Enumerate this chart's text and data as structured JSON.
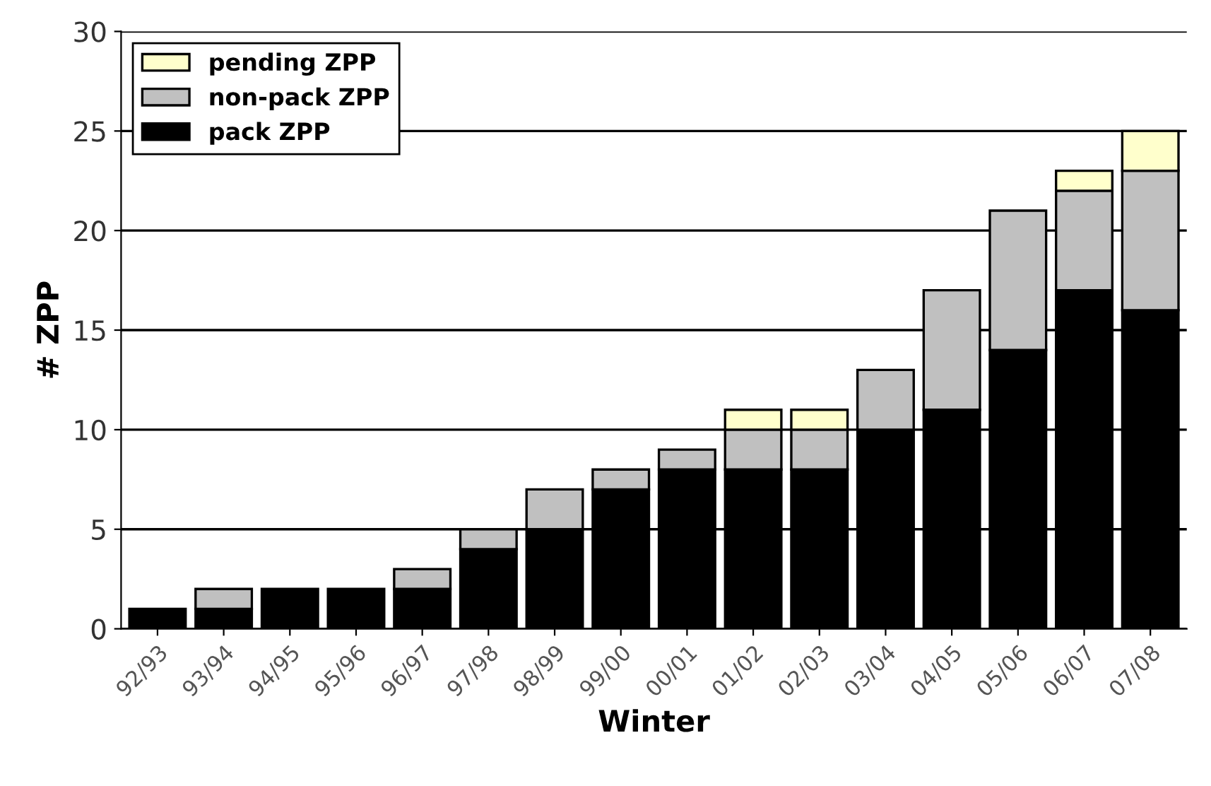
{
  "chart_data": {
    "type": "bar",
    "stacked": true,
    "xlabel": "Winter",
    "ylabel": "# ZPP",
    "categories": [
      "92/93",
      "93/94",
      "94/95",
      "95/96",
      "96/97",
      "97/98",
      "98/99",
      "99/00",
      "00/01",
      "01/02",
      "02/03",
      "03/04",
      "04/05",
      "05/06",
      "06/07",
      "07/08"
    ],
    "series": [
      {
        "name": "pack ZPP",
        "color": "#000000",
        "values": [
          1,
          1,
          2,
          2,
          2,
          4,
          5,
          7,
          8,
          8,
          8,
          10,
          11,
          14,
          17,
          16
        ]
      },
      {
        "name": "non-pack ZPP",
        "color": "#c0c0c0",
        "values": [
          null,
          1,
          null,
          null,
          1,
          1,
          2,
          1,
          1,
          2,
          2,
          3,
          6,
          7,
          5,
          7
        ]
      },
      {
        "name": "pending ZPP",
        "color": "#ffffcc",
        "values": [
          null,
          null,
          null,
          null,
          null,
          null,
          null,
          null,
          null,
          1,
          1,
          null,
          null,
          null,
          1,
          2
        ]
      }
    ],
    "ylim": [
      0,
      30
    ],
    "yticks": [
      0,
      5,
      10,
      15,
      20,
      25,
      30
    ],
    "grid": "y",
    "legend": "top left"
  }
}
